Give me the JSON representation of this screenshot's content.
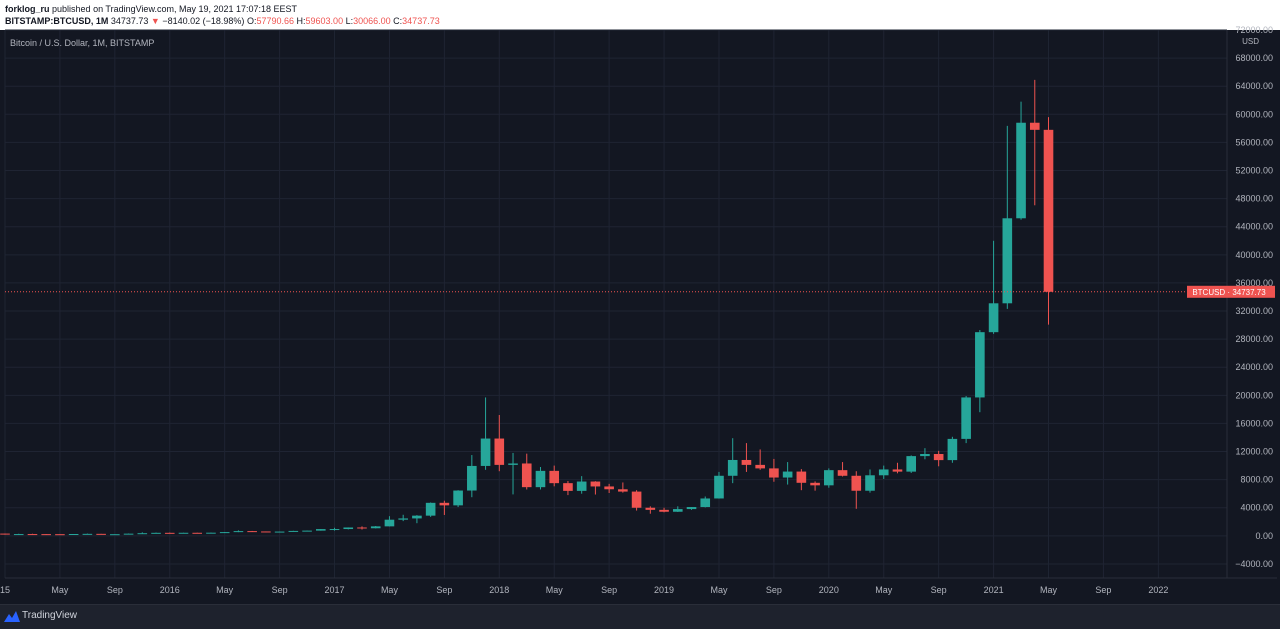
{
  "header": {
    "publisher": "forklog_ru",
    "published_text": "published on TradingView.com, May 19, 2021 17:07:18 EEST",
    "symbol": "BITSTAMP:BTCUSD, 1M",
    "last_price": "34737.73",
    "change_arrow": "▼",
    "change": "−8140.02 (−18.98%)",
    "o_label": "O:",
    "o_value": "57790.66",
    "h_label": "H:",
    "h_value": "59603.00",
    "l_label": "L:",
    "l_value": "30066.00",
    "c_label": "C:",
    "c_value": "34737.73"
  },
  "chart_caption": "Bitcoin / U.S. Dollar, 1M, BITSTAMP",
  "footer": {
    "brand": "TradingView"
  },
  "colors": {
    "up": "#26a69a",
    "down": "#ef5350",
    "background": "#131722",
    "grid": "#1f2433",
    "text": "#b2b5be"
  },
  "chart_data": {
    "type": "candlestick",
    "title": "Bitcoin / U.S. Dollar, 1M, BITSTAMP",
    "currency_label": "USD",
    "price_line": {
      "label": "BTCUSD",
      "value": "34737.73",
      "y": 34737.73
    },
    "ylim": [
      -6000,
      72000
    ],
    "yticks": [
      -4000,
      0,
      4000,
      8000,
      12000,
      16000,
      20000,
      24000,
      28000,
      32000,
      36000,
      40000,
      44000,
      48000,
      52000,
      56000,
      60000,
      64000,
      68000,
      72000
    ],
    "ytick_labels": [
      "−4000.00",
      "0.00",
      "4000.00",
      "8000.00",
      "12000.00",
      "16000.00",
      "20000.00",
      "24000.00",
      "28000.00",
      "32000.00",
      "36000.00",
      "40000.00",
      "44000.00",
      "48000.00",
      "52000.00",
      "56000.00",
      "60000.00",
      "64000.00",
      "68000.00",
      "72000.00"
    ],
    "xlim": [
      "2015-01",
      "2022-06"
    ],
    "xticks": [
      {
        "date": "2015-01",
        "label": "15"
      },
      {
        "date": "2015-05",
        "label": "May"
      },
      {
        "date": "2015-09",
        "label": "Sep"
      },
      {
        "date": "2016-01",
        "label": "2016"
      },
      {
        "date": "2016-05",
        "label": "May"
      },
      {
        "date": "2016-09",
        "label": "Sep"
      },
      {
        "date": "2017-01",
        "label": "2017"
      },
      {
        "date": "2017-05",
        "label": "May"
      },
      {
        "date": "2017-09",
        "label": "Sep"
      },
      {
        "date": "2018-01",
        "label": "2018"
      },
      {
        "date": "2018-05",
        "label": "May"
      },
      {
        "date": "2018-09",
        "label": "Sep"
      },
      {
        "date": "2019-01",
        "label": "2019"
      },
      {
        "date": "2019-05",
        "label": "May"
      },
      {
        "date": "2019-09",
        "label": "Sep"
      },
      {
        "date": "2020-01",
        "label": "2020"
      },
      {
        "date": "2020-05",
        "label": "May"
      },
      {
        "date": "2020-09",
        "label": "Sep"
      },
      {
        "date": "2021-01",
        "label": "2021"
      },
      {
        "date": "2021-05",
        "label": "May"
      },
      {
        "date": "2021-09",
        "label": "Sep"
      },
      {
        "date": "2022-01",
        "label": "2022"
      }
    ],
    "candles": [
      {
        "date": "2015-01",
        "o": 320,
        "h": 320,
        "l": 170,
        "c": 217
      },
      {
        "date": "2015-02",
        "o": 217,
        "h": 300,
        "l": 210,
        "c": 254
      },
      {
        "date": "2015-03",
        "o": 254,
        "h": 300,
        "l": 240,
        "c": 244
      },
      {
        "date": "2015-04",
        "o": 244,
        "h": 260,
        "l": 215,
        "c": 236
      },
      {
        "date": "2015-05",
        "o": 236,
        "h": 250,
        "l": 225,
        "c": 230
      },
      {
        "date": "2015-06",
        "o": 230,
        "h": 265,
        "l": 220,
        "c": 263
      },
      {
        "date": "2015-07",
        "o": 263,
        "h": 320,
        "l": 255,
        "c": 284
      },
      {
        "date": "2015-08",
        "o": 284,
        "h": 285,
        "l": 200,
        "c": 230
      },
      {
        "date": "2015-09",
        "o": 230,
        "h": 245,
        "l": 225,
        "c": 236
      },
      {
        "date": "2015-10",
        "o": 236,
        "h": 330,
        "l": 235,
        "c": 311
      },
      {
        "date": "2015-11",
        "o": 311,
        "h": 500,
        "l": 300,
        "c": 377
      },
      {
        "date": "2015-12",
        "o": 377,
        "h": 465,
        "l": 350,
        "c": 430
      },
      {
        "date": "2016-01",
        "o": 430,
        "h": 460,
        "l": 350,
        "c": 368
      },
      {
        "date": "2016-02",
        "o": 368,
        "h": 440,
        "l": 365,
        "c": 437
      },
      {
        "date": "2016-03",
        "o": 437,
        "h": 440,
        "l": 400,
        "c": 416
      },
      {
        "date": "2016-04",
        "o": 416,
        "h": 470,
        "l": 415,
        "c": 448
      },
      {
        "date": "2016-05",
        "o": 448,
        "h": 550,
        "l": 440,
        "c": 531
      },
      {
        "date": "2016-06",
        "o": 531,
        "h": 780,
        "l": 530,
        "c": 673
      },
      {
        "date": "2016-07",
        "o": 673,
        "h": 700,
        "l": 600,
        "c": 624
      },
      {
        "date": "2016-08",
        "o": 624,
        "h": 625,
        "l": 530,
        "c": 574
      },
      {
        "date": "2016-09",
        "o": 574,
        "h": 620,
        "l": 570,
        "c": 609
      },
      {
        "date": "2016-10",
        "o": 609,
        "h": 720,
        "l": 605,
        "c": 701
      },
      {
        "date": "2016-11",
        "o": 701,
        "h": 750,
        "l": 690,
        "c": 742
      },
      {
        "date": "2016-12",
        "o": 742,
        "h": 970,
        "l": 740,
        "c": 963
      },
      {
        "date": "2017-01",
        "o": 963,
        "h": 1150,
        "l": 750,
        "c": 970
      },
      {
        "date": "2017-02",
        "o": 970,
        "h": 1200,
        "l": 920,
        "c": 1190
      },
      {
        "date": "2017-03",
        "o": 1190,
        "h": 1350,
        "l": 900,
        "c": 1080
      },
      {
        "date": "2017-04",
        "o": 1080,
        "h": 1400,
        "l": 1060,
        "c": 1350
      },
      {
        "date": "2017-05",
        "o": 1350,
        "h": 2800,
        "l": 1340,
        "c": 2300
      },
      {
        "date": "2017-06",
        "o": 2300,
        "h": 3000,
        "l": 2100,
        "c": 2480
      },
      {
        "date": "2017-07",
        "o": 2480,
        "h": 2950,
        "l": 1800,
        "c": 2875
      },
      {
        "date": "2017-08",
        "o": 2875,
        "h": 4750,
        "l": 2700,
        "c": 4700
      },
      {
        "date": "2017-09",
        "o": 4700,
        "h": 5000,
        "l": 2970,
        "c": 4340
      },
      {
        "date": "2017-10",
        "o": 4340,
        "h": 6500,
        "l": 4100,
        "c": 6450
      },
      {
        "date": "2017-11",
        "o": 6450,
        "h": 11500,
        "l": 5500,
        "c": 9950
      },
      {
        "date": "2017-12",
        "o": 9950,
        "h": 19700,
        "l": 9400,
        "c": 13850
      },
      {
        "date": "2018-01",
        "o": 13850,
        "h": 17200,
        "l": 9200,
        "c": 10100
      },
      {
        "date": "2018-02",
        "o": 10100,
        "h": 11800,
        "l": 5900,
        "c": 10300
      },
      {
        "date": "2018-03",
        "o": 10300,
        "h": 11700,
        "l": 6600,
        "c": 6930
      },
      {
        "date": "2018-04",
        "o": 6930,
        "h": 9800,
        "l": 6600,
        "c": 9250
      },
      {
        "date": "2018-05",
        "o": 9250,
        "h": 10000,
        "l": 7050,
        "c": 7500
      },
      {
        "date": "2018-06",
        "o": 7500,
        "h": 7800,
        "l": 5800,
        "c": 6400
      },
      {
        "date": "2018-07",
        "o": 6400,
        "h": 8500,
        "l": 6000,
        "c": 7730
      },
      {
        "date": "2018-08",
        "o": 7730,
        "h": 7780,
        "l": 5880,
        "c": 7030
      },
      {
        "date": "2018-09",
        "o": 7030,
        "h": 7400,
        "l": 6100,
        "c": 6630
      },
      {
        "date": "2018-10",
        "o": 6630,
        "h": 7600,
        "l": 6150,
        "c": 6300
      },
      {
        "date": "2018-11",
        "o": 6300,
        "h": 6500,
        "l": 3600,
        "c": 4000
      },
      {
        "date": "2018-12",
        "o": 4000,
        "h": 4200,
        "l": 3150,
        "c": 3700
      },
      {
        "date": "2019-01",
        "o": 3700,
        "h": 4000,
        "l": 3350,
        "c": 3430
      },
      {
        "date": "2019-02",
        "o": 3430,
        "h": 4200,
        "l": 3400,
        "c": 3810
      },
      {
        "date": "2019-03",
        "o": 3810,
        "h": 4100,
        "l": 3700,
        "c": 4100
      },
      {
        "date": "2019-04",
        "o": 4100,
        "h": 5600,
        "l": 4050,
        "c": 5320
      },
      {
        "date": "2019-05",
        "o": 5320,
        "h": 9100,
        "l": 5300,
        "c": 8550
      },
      {
        "date": "2019-06",
        "o": 8550,
        "h": 13900,
        "l": 7500,
        "c": 10800
      },
      {
        "date": "2019-07",
        "o": 10800,
        "h": 13200,
        "l": 9100,
        "c": 10100
      },
      {
        "date": "2019-08",
        "o": 10100,
        "h": 12300,
        "l": 9400,
        "c": 9600
      },
      {
        "date": "2019-09",
        "o": 9600,
        "h": 10950,
        "l": 7700,
        "c": 8300
      },
      {
        "date": "2019-10",
        "o": 8300,
        "h": 10500,
        "l": 7300,
        "c": 9150
      },
      {
        "date": "2019-11",
        "o": 9150,
        "h": 9500,
        "l": 6500,
        "c": 7550
      },
      {
        "date": "2019-12",
        "o": 7550,
        "h": 7750,
        "l": 6430,
        "c": 7190
      },
      {
        "date": "2020-01",
        "o": 7190,
        "h": 9600,
        "l": 6850,
        "c": 9350
      },
      {
        "date": "2020-02",
        "o": 9350,
        "h": 10500,
        "l": 8450,
        "c": 8550
      },
      {
        "date": "2020-03",
        "o": 8550,
        "h": 9200,
        "l": 3850,
        "c": 6420
      },
      {
        "date": "2020-04",
        "o": 6420,
        "h": 9450,
        "l": 6150,
        "c": 8620
      },
      {
        "date": "2020-05",
        "o": 8620,
        "h": 10000,
        "l": 8100,
        "c": 9450
      },
      {
        "date": "2020-06",
        "o": 9450,
        "h": 10400,
        "l": 8900,
        "c": 9140
      },
      {
        "date": "2020-07",
        "o": 9140,
        "h": 11450,
        "l": 8950,
        "c": 11350
      },
      {
        "date": "2020-08",
        "o": 11350,
        "h": 12480,
        "l": 10900,
        "c": 11650
      },
      {
        "date": "2020-09",
        "o": 11650,
        "h": 12100,
        "l": 9900,
        "c": 10780
      },
      {
        "date": "2020-10",
        "o": 10780,
        "h": 14100,
        "l": 10400,
        "c": 13800
      },
      {
        "date": "2020-11",
        "o": 13800,
        "h": 19900,
        "l": 13200,
        "c": 19700
      },
      {
        "date": "2020-12",
        "o": 19700,
        "h": 29300,
        "l": 17600,
        "c": 28990
      },
      {
        "date": "2021-01",
        "o": 28990,
        "h": 42000,
        "l": 28750,
        "c": 33100
      },
      {
        "date": "2021-02",
        "o": 33100,
        "h": 58350,
        "l": 32300,
        "c": 45200
      },
      {
        "date": "2021-03",
        "o": 45200,
        "h": 61800,
        "l": 45000,
        "c": 58800
      },
      {
        "date": "2021-04",
        "o": 58800,
        "h": 64900,
        "l": 47050,
        "c": 57790
      },
      {
        "date": "2021-05",
        "o": 57790,
        "h": 59603,
        "l": 30066,
        "c": 34737.73
      }
    ]
  }
}
